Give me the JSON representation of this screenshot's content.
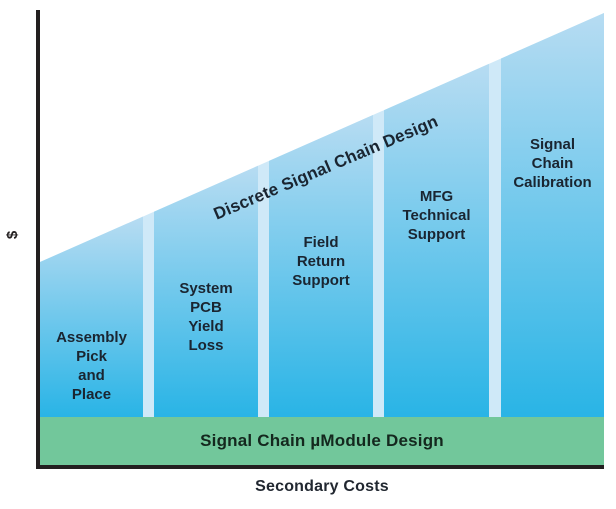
{
  "chart_data": {
    "type": "area",
    "title": "",
    "ylabel": "$",
    "xlabel": "Secondary Costs",
    "diagonal_annotation": "Discrete Signal Chain Design",
    "base_band_label": "Signal Chain µModule Design",
    "segments": [
      {
        "label": "Assembly\nPick\nand\nPlace",
        "relative_height": 0.44
      },
      {
        "label": "System\nPCB\nYield\nLoss",
        "relative_height": 0.57
      },
      {
        "label": "Field\nReturn\nSupport",
        "relative_height": 0.69
      },
      {
        "label": "MFG\nTechnical\nSupport",
        "relative_height": 0.82
      },
      {
        "label": "Signal\nChain\nCalibration",
        "relative_height": 0.94
      }
    ],
    "layout": {
      "legend": "none",
      "grid": false,
      "axis_ticks": "none"
    },
    "colors": {
      "bar_gradient_top": "#b7dcf2",
      "bar_gradient_bottom": "#29b4e6",
      "segment_gap": "#cfe9f8",
      "base_band": "#72c79b",
      "axis": "#231f20",
      "bar_text": "#1a2531",
      "band_text": "#14281e"
    }
  }
}
